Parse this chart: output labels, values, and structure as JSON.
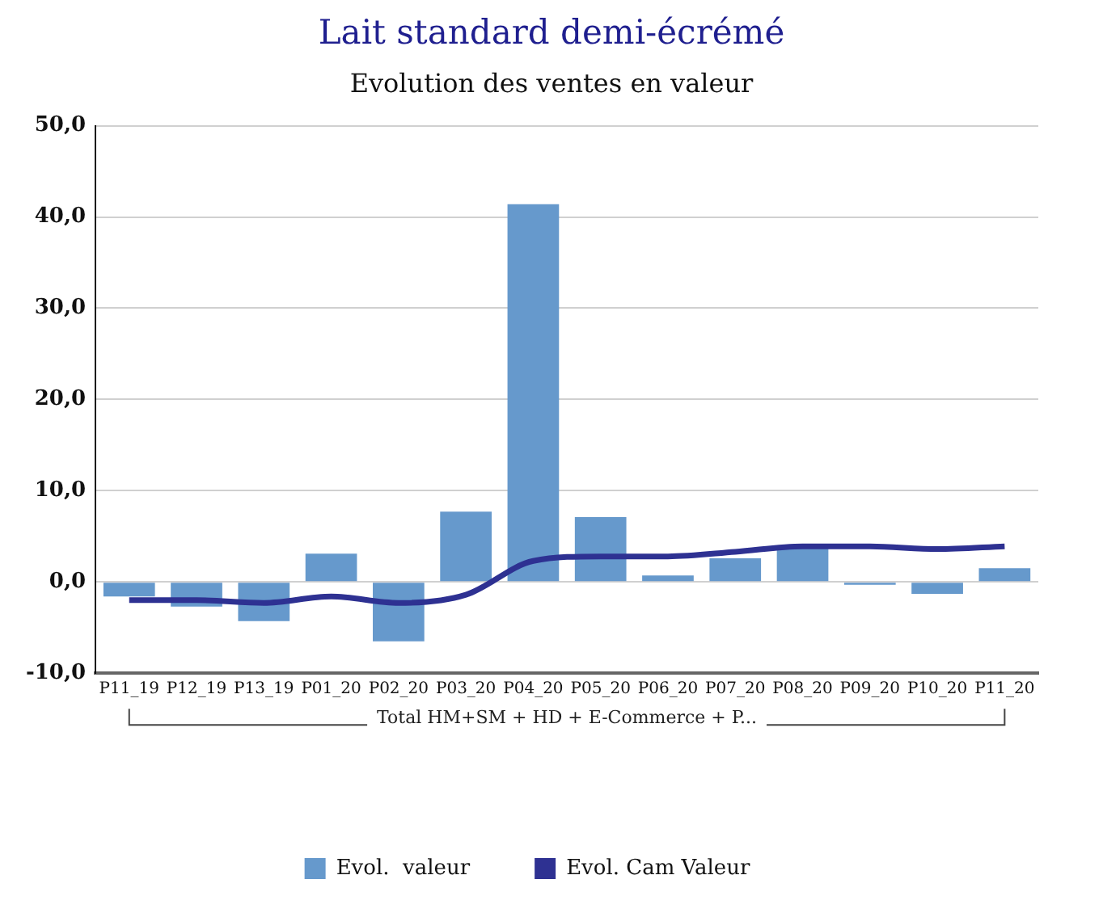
{
  "chart_data": {
    "type": "bar",
    "title": "Lait standard demi-écrémé",
    "subtitle": "Evolution des ventes en valeur",
    "categories": [
      "P11_19",
      "P12_19",
      "P13_19",
      "P01_20",
      "P02_20",
      "P03_20",
      "P04_20",
      "P05_20",
      "P06_20",
      "P07_20",
      "P08_20",
      "P09_20",
      "P10_20",
      "P11_20"
    ],
    "series": [
      {
        "name": "Evol.  valeur",
        "color": "#6699cc",
        "values": [
          -1.6,
          -2.7,
          -4.3,
          3.1,
          -6.5,
          7.7,
          41.4,
          7.1,
          0.7,
          2.6,
          3.7,
          -0.3,
          -1.3,
          1.5
        ]
      },
      {
        "name": "Evol. Cam Valeur",
        "type": "line",
        "color": "#2e3192",
        "values": [
          -2.0,
          -2.0,
          -2.3,
          -1.6,
          -2.3,
          -1.4,
          2.3,
          2.8,
          2.8,
          3.3,
          3.9,
          3.9,
          3.6,
          3.9
        ]
      }
    ],
    "ylim": [
      -10,
      50
    ],
    "yticks": [
      {
        "value": -10,
        "label": "-10,0"
      },
      {
        "value": 0,
        "label": "0,0"
      },
      {
        "value": 10,
        "label": "10,0"
      },
      {
        "value": 20,
        "label": "20,0"
      },
      {
        "value": 30,
        "label": "30,0"
      },
      {
        "value": 40,
        "label": "40,0"
      },
      {
        "value": 50,
        "label": "50,0"
      }
    ],
    "annotations": [
      "Total HM+SM + HD + E-Commerce + P..."
    ],
    "grid": "y",
    "legend": "bottom",
    "marker": "none"
  }
}
